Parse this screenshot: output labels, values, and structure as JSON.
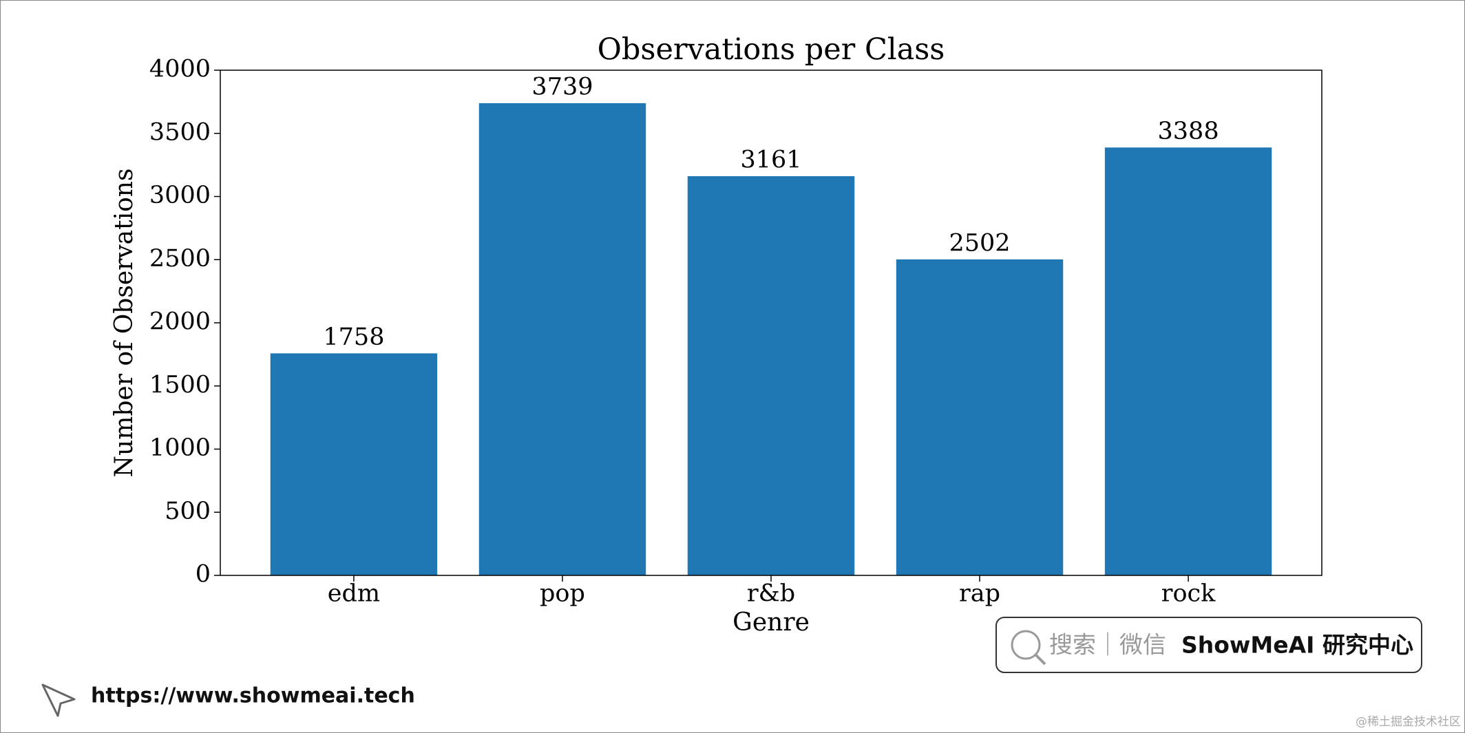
{
  "chart_data": {
    "type": "bar",
    "title": "Observations per Class",
    "x_label": "Genre",
    "y_label": "Number of Observations",
    "categories": [
      "edm",
      "pop",
      "r&b",
      "rap",
      "rock"
    ],
    "values": [
      1758,
      3739,
      3161,
      2502,
      3388
    ],
    "color": "#1f77b4",
    "ylim": [
      0,
      4000
    ],
    "yticks": [
      0,
      500,
      1000,
      1500,
      2000,
      2500,
      3000,
      3500,
      4000
    ],
    "grid": false
  },
  "watermark": {
    "search": "搜索｜微信",
    "brand": "ShowMeAI 研究中心",
    "url": "https://www.showmeai.tech",
    "credit": "@稀土掘金技术社区"
  }
}
